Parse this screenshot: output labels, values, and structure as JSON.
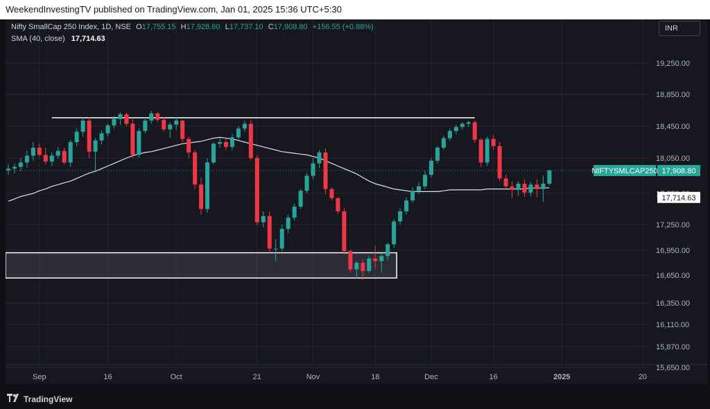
{
  "header": {
    "published_text": "WeekendInvestingTV published on TradingView.com, Jan 01, 2025 15:36 UTC+5:30"
  },
  "legend": {
    "symbol": "Nifty SmallCap 250 Index, 1D, NSE",
    "open_label": "O",
    "open": "17,755.15",
    "high_label": "H",
    "high": "17,928.60",
    "low_label": "L",
    "low": "17,737.10",
    "close_label": "C",
    "close": "17,908.80",
    "change": "+156.55 (+0.88%)",
    "sma_label": "SMA (40, close)",
    "sma_value": "17,714.63"
  },
  "currency_button": "INR",
  "footer": {
    "brand": "TradingView",
    "logo_icon": "tradingview-logo-icon"
  },
  "colors": {
    "up": "#26a69a",
    "down": "#f23645",
    "sma": "#e0e3eb",
    "background": "#16171f",
    "grid": "#252730"
  },
  "chart_data": {
    "type": "candlestick",
    "symbol": "NIFTYSMLCAP250",
    "price_axis_ticks": [
      "19,250.00",
      "18,850.00",
      "18,450.00",
      "18,050.00",
      "17,650.00",
      "17,250.00",
      "16,950.00",
      "16,650.00",
      "16,350.00",
      "16,110.00",
      "15,870.00",
      "15,650.00"
    ],
    "time_axis_ticks": [
      {
        "label": "Sep",
        "index": 5
      },
      {
        "label": "16",
        "index": 16
      },
      {
        "label": "Oct",
        "index": 27
      },
      {
        "label": "21",
        "index": 40
      },
      {
        "label": "Nov",
        "index": 49
      },
      {
        "label": "18",
        "index": 59
      },
      {
        "label": "Dec",
        "index": 68
      },
      {
        "label": "16",
        "index": 78
      },
      {
        "label": "2025",
        "index": 89
      },
      {
        "label": "20",
        "index": 102
      }
    ],
    "last_price_label": {
      "symbol": "NIFTYSMLCAP250",
      "value": "17,908.80"
    },
    "sma_label": "17,714.63",
    "dotted_price": 17908.8,
    "resistance_line": {
      "price": 18555,
      "from_index": 7,
      "to_index": 75
    },
    "support_zone": {
      "top": 16920,
      "bottom": 16620,
      "from_index": -1,
      "to_index": 62
    },
    "candles": [
      [
        17910,
        17980,
        17860,
        17930
      ],
      [
        17930,
        17990,
        17880,
        17950
      ],
      [
        17950,
        18050,
        17900,
        18000
      ],
      [
        18000,
        18150,
        17940,
        18080
      ],
      [
        18080,
        18250,
        18020,
        18180
      ],
      [
        18180,
        18230,
        18070,
        18090
      ],
      [
        18090,
        18180,
        17980,
        18010
      ],
      [
        18010,
        18120,
        17960,
        18080
      ],
      [
        18080,
        18190,
        18040,
        18140
      ],
      [
        18140,
        18180,
        17980,
        18000
      ],
      [
        18000,
        18280,
        17950,
        18250
      ],
      [
        18250,
        18420,
        18200,
        18380
      ],
      [
        18380,
        18560,
        18320,
        18520
      ],
      [
        18520,
        18560,
        18050,
        18130
      ],
      [
        18130,
        18300,
        17900,
        18270
      ],
      [
        18270,
        18400,
        18220,
        18360
      ],
      [
        18360,
        18480,
        18320,
        18460
      ],
      [
        18460,
        18580,
        18420,
        18540
      ],
      [
        18540,
        18620,
        18470,
        18600
      ],
      [
        18600,
        18620,
        18450,
        18480
      ],
      [
        18480,
        18540,
        18050,
        18090
      ],
      [
        18090,
        18420,
        18050,
        18390
      ],
      [
        18390,
        18560,
        18360,
        18520
      ],
      [
        18520,
        18640,
        18480,
        18610
      ],
      [
        18610,
        18630,
        18500,
        18530
      ],
      [
        18530,
        18560,
        18380,
        18410
      ],
      [
        18410,
        18500,
        18300,
        18470
      ],
      [
        18470,
        18560,
        18410,
        18520
      ],
      [
        18520,
        18530,
        18250,
        18290
      ],
      [
        18290,
        18320,
        18050,
        18120
      ],
      [
        18120,
        18150,
        17700,
        17750
      ],
      [
        17750,
        17830,
        17380,
        17450
      ],
      [
        17450,
        18050,
        17400,
        18000
      ],
      [
        18000,
        18250,
        17980,
        18230
      ],
      [
        18230,
        18300,
        18180,
        18250
      ],
      [
        18250,
        18300,
        18150,
        18190
      ],
      [
        18190,
        18350,
        18150,
        18310
      ],
      [
        18310,
        18450,
        18280,
        18420
      ],
      [
        18420,
        18520,
        18380,
        18480
      ],
      [
        18480,
        18530,
        18020,
        18050
      ],
      [
        18050,
        18090,
        17240,
        17280
      ],
      [
        17280,
        17420,
        17220,
        17360
      ],
      [
        17360,
        17420,
        16920,
        16970
      ],
      [
        16970,
        17080,
        16820,
        16970
      ],
      [
        16970,
        17250,
        16940,
        17200
      ],
      [
        17200,
        17380,
        17150,
        17340
      ],
      [
        17340,
        17520,
        17300,
        17480
      ],
      [
        17480,
        17700,
        17450,
        17680
      ],
      [
        17680,
        17880,
        17650,
        17850
      ],
      [
        17850,
        18050,
        17810,
        17990
      ],
      [
        17990,
        18150,
        17940,
        18120
      ],
      [
        18120,
        18170,
        17640,
        17700
      ],
      [
        17700,
        17720,
        17560,
        17590
      ],
      [
        17590,
        17600,
        17390,
        17420
      ],
      [
        17420,
        17460,
        16900,
        16940
      ],
      [
        16940,
        16960,
        16680,
        16720
      ],
      [
        16720,
        16820,
        16620,
        16800
      ],
      [
        16800,
        16840,
        16600,
        16700
      ],
      [
        16700,
        16880,
        16680,
        16850
      ],
      [
        16850,
        17000,
        16730,
        16820
      ],
      [
        16820,
        16920,
        16680,
        16880
      ],
      [
        16880,
        17040,
        16830,
        17020
      ],
      [
        17020,
        17320,
        16980,
        17290
      ],
      [
        17290,
        17460,
        17250,
        17420
      ],
      [
        17420,
        17600,
        17380,
        17560
      ],
      [
        17560,
        17720,
        17530,
        17680
      ],
      [
        17680,
        17780,
        17640,
        17730
      ],
      [
        17730,
        17900,
        17700,
        17860
      ],
      [
        17860,
        18050,
        17830,
        18020
      ],
      [
        18020,
        18200,
        17990,
        18180
      ],
      [
        18180,
        18330,
        18150,
        18300
      ],
      [
        18300,
        18420,
        18270,
        18390
      ],
      [
        18390,
        18470,
        18350,
        18440
      ],
      [
        18440,
        18500,
        18410,
        18480
      ],
      [
        18480,
        18520,
        18440,
        18500
      ],
      [
        18500,
        18520,
        18240,
        18280
      ],
      [
        18280,
        18300,
        17950,
        18000
      ],
      [
        18000,
        18320,
        17960,
        18290
      ],
      [
        18290,
        18340,
        18150,
        18200
      ],
      [
        18200,
        18250,
        17790,
        17820
      ],
      [
        17820,
        17860,
        17700,
        17730
      ],
      [
        17730,
        17790,
        17590,
        17690
      ],
      [
        17690,
        17790,
        17620,
        17760
      ],
      [
        17760,
        17810,
        17610,
        17660
      ],
      [
        17660,
        17780,
        17610,
        17750
      ],
      [
        17750,
        17810,
        17600,
        17700
      ],
      [
        17700,
        17850,
        17540,
        17760
      ],
      [
        17760,
        17920,
        17740,
        17910
      ]
    ],
    "sma_values": [
      17550,
      17580,
      17610,
      17630,
      17650,
      17680,
      17700,
      17730,
      17750,
      17770,
      17790,
      17820,
      17850,
      17880,
      17900,
      17930,
      17960,
      17990,
      18020,
      18050,
      18080,
      18100,
      18120,
      18130,
      18150,
      18170,
      18190,
      18210,
      18230,
      18240,
      18250,
      18260,
      18280,
      18300,
      18310,
      18300,
      18290,
      18270,
      18250,
      18230,
      18210,
      18190,
      18170,
      18150,
      18130,
      18120,
      18110,
      18100,
      18090,
      18070,
      18050,
      18020,
      17990,
      17960,
      17930,
      17900,
      17870,
      17830,
      17790,
      17760,
      17740,
      17720,
      17700,
      17690,
      17680,
      17670,
      17670,
      17670,
      17670,
      17670,
      17680,
      17690,
      17690,
      17690,
      17690,
      17690,
      17690,
      17700,
      17700,
      17700,
      17700,
      17700,
      17700,
      17700,
      17710,
      17710,
      17710,
      17714.63
    ]
  }
}
